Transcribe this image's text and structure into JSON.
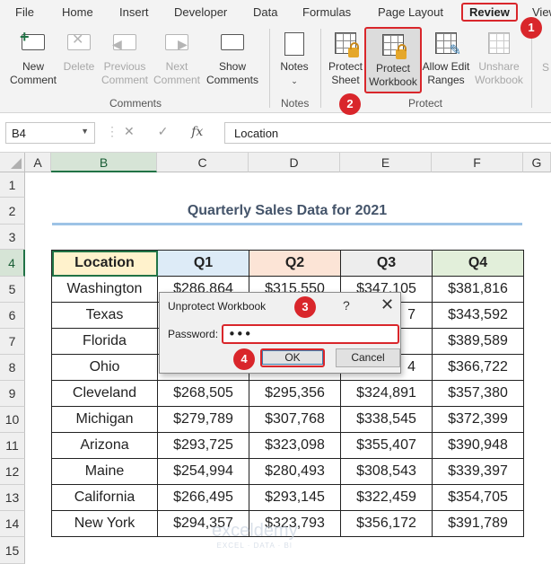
{
  "menu": {
    "items": [
      "File",
      "Home",
      "Insert",
      "Developer",
      "Data",
      "Formulas",
      "Page Layout",
      "Review",
      "View"
    ],
    "active": "Review"
  },
  "ribbon": {
    "comments_group": "Comments",
    "notes_group": "Notes",
    "protect_group": "Protect",
    "buttons": {
      "new_comment": [
        "New",
        "Comment"
      ],
      "delete": [
        "Delete"
      ],
      "previous_comment": [
        "Previous",
        "Comment"
      ],
      "next_comment": [
        "Next",
        "Comment"
      ],
      "show_comments": [
        "Show",
        "Comments"
      ],
      "notes": [
        "Notes"
      ],
      "protect_sheet": [
        "Protect",
        "Sheet"
      ],
      "protect_workbook": [
        "Protect",
        "Workbook"
      ],
      "allow_edit_ranges": [
        "Allow Edit",
        "Ranges"
      ],
      "unshare_workbook": [
        "Unshare",
        "Workbook"
      ],
      "partial": "S"
    }
  },
  "badges": {
    "b1": "1",
    "b2": "2",
    "b3": "3",
    "b4": "4"
  },
  "formula_bar": {
    "name_box": "B4",
    "fx": "fx",
    "content": "Location"
  },
  "sheet": {
    "columns": [
      "A",
      "B",
      "C",
      "D",
      "E",
      "F",
      "G"
    ],
    "rows": [
      "1",
      "2",
      "3",
      "4",
      "5",
      "6",
      "7",
      "8",
      "9",
      "10",
      "11",
      "12",
      "13",
      "14",
      "15"
    ],
    "title": "Quarterly Sales Data for 2021",
    "table": {
      "headers": [
        "Location",
        "Q1",
        "Q2",
        "Q3",
        "Q4"
      ],
      "rows": [
        [
          "Washington",
          "$286,864",
          "$315,550",
          "$347,105",
          "$381,816"
        ],
        [
          "Texas",
          "$",
          "",
          "7",
          "$343,592"
        ],
        [
          "Florida",
          "$",
          "",
          "",
          "$389,589"
        ],
        [
          "Ohio",
          "",
          "",
          "4",
          "$366,722"
        ],
        [
          "Cleveland",
          "$268,505",
          "$295,356",
          "$324,891",
          "$357,380"
        ],
        [
          "Michigan",
          "$279,789",
          "$307,768",
          "$338,545",
          "$372,399"
        ],
        [
          "Arizona",
          "$293,725",
          "$323,098",
          "$355,407",
          "$390,948"
        ],
        [
          "Maine",
          "$254,994",
          "$280,493",
          "$308,543",
          "$339,397"
        ],
        [
          "California",
          "$266,495",
          "$293,145",
          "$322,459",
          "$354,705"
        ],
        [
          "New York",
          "$294,357",
          "$323,793",
          "$356,172",
          "$391,789"
        ]
      ]
    }
  },
  "dialog": {
    "title": "Unprotect Workbook",
    "help": "?",
    "close": "✕",
    "password_label": "Password:",
    "password_value": "•••",
    "ok": "OK",
    "cancel": "Cancel"
  },
  "watermark": {
    "name": "exceldemy",
    "tagline": "EXCEL · DATA · BI"
  },
  "colors": {
    "accent_red": "#d9262b",
    "excel_green": "#217346"
  }
}
